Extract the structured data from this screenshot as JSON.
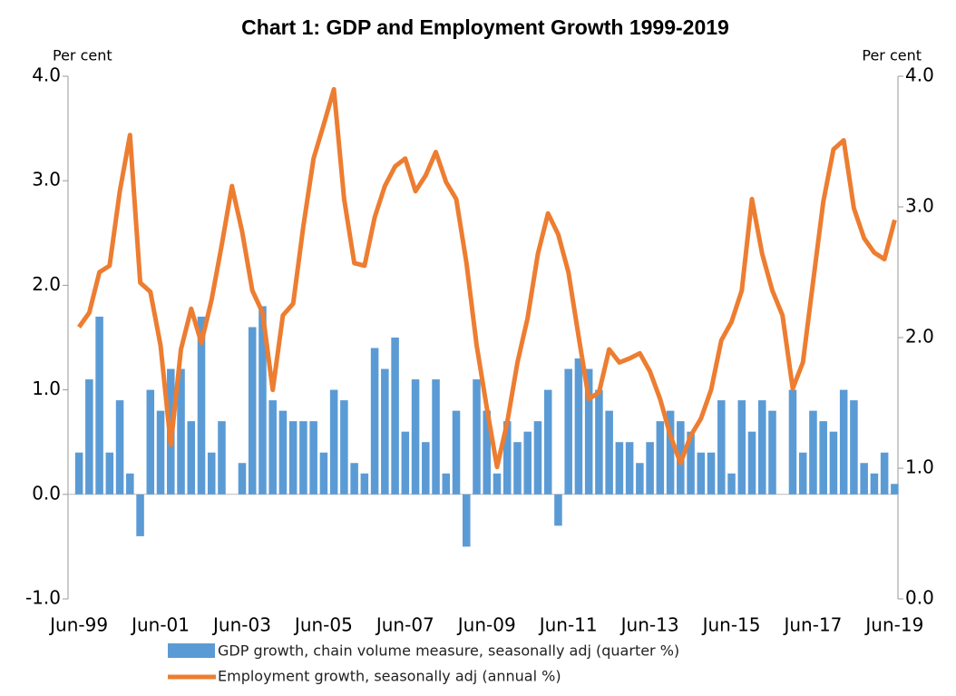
{
  "chart_data": {
    "type": "bar",
    "title": "Chart 1: GDP and Employment Growth 1999-2019",
    "y_label": "Per cent",
    "y2_label": "Per cent",
    "categories": [
      "Jun-99",
      null,
      null,
      null,
      null,
      null,
      null,
      null,
      "Jun-01",
      null,
      null,
      null,
      null,
      null,
      null,
      null,
      "Jun-03",
      null,
      null,
      null,
      null,
      null,
      null,
      null,
      "Jun-05",
      null,
      null,
      null,
      null,
      null,
      null,
      null,
      "Jun-07",
      null,
      null,
      null,
      null,
      null,
      null,
      null,
      "Jun-09",
      null,
      null,
      null,
      null,
      null,
      null,
      null,
      "Jun-11",
      null,
      null,
      null,
      null,
      null,
      null,
      null,
      "Jun-13",
      null,
      null,
      null,
      null,
      null,
      null,
      null,
      "Jun-15",
      null,
      null,
      null,
      null,
      null,
      null,
      null,
      "Jun-17",
      null,
      null,
      null,
      null,
      null,
      null,
      null,
      "Jun-19"
    ],
    "series": [
      {
        "name": "GDP growth, chain volume measure, seasonally adj (quarter %)",
        "type": "bar",
        "color": "#5b9bd5",
        "values": [
          0.4,
          1.1,
          1.7,
          0.4,
          0.9,
          0.2,
          -0.4,
          1.0,
          0.8,
          1.2,
          1.2,
          0.7,
          1.7,
          0.4,
          0.7,
          0.0,
          0.3,
          1.6,
          1.8,
          0.9,
          0.8,
          0.7,
          0.7,
          0.7,
          0.4,
          1.0,
          0.9,
          0.3,
          0.2,
          1.4,
          1.2,
          1.5,
          0.6,
          1.1,
          0.5,
          1.1,
          0.2,
          0.8,
          -0.5,
          1.1,
          0.8,
          0.2,
          0.7,
          0.5,
          0.6,
          0.7,
          1.0,
          -0.3,
          1.2,
          1.3,
          1.2,
          1.0,
          0.8,
          0.5,
          0.5,
          0.3,
          0.5,
          0.7,
          0.8,
          0.7,
          0.6,
          0.4,
          0.4,
          0.9,
          0.2,
          0.9,
          0.6,
          0.9,
          0.8,
          0.0,
          1.0,
          0.4,
          0.8,
          0.7,
          0.6,
          1.0,
          0.9,
          0.3,
          0.2,
          0.4,
          0.1
        ]
      },
      {
        "name": "Employment growth, seasonally adj (annual %)",
        "type": "line",
        "axis": "y2",
        "color": "#ed7d31",
        "values": [
          2.08,
          2.19,
          2.5,
          2.55,
          3.12,
          3.55,
          2.42,
          2.35,
          1.94,
          1.18,
          1.91,
          2.22,
          1.96,
          2.29,
          2.71,
          3.16,
          2.81,
          2.36,
          2.19,
          1.6,
          2.17,
          2.26,
          2.85,
          3.37,
          3.63,
          3.9,
          3.06,
          2.57,
          2.55,
          2.92,
          3.16,
          3.31,
          3.37,
          3.12,
          3.24,
          3.42,
          3.19,
          3.06,
          2.57,
          1.94,
          1.46,
          1.01,
          1.35,
          1.81,
          2.15,
          2.64,
          2.95,
          2.79,
          2.5,
          2.01,
          1.53,
          1.58,
          1.91,
          1.81,
          1.84,
          1.88,
          1.74,
          1.53,
          1.25,
          1.04,
          1.25,
          1.38,
          1.6,
          1.98,
          2.12,
          2.36,
          3.06,
          2.64,
          2.36,
          2.17,
          1.61,
          1.81,
          2.43,
          3.04,
          3.44,
          3.51,
          2.99,
          2.76,
          2.65,
          2.6,
          2.9
        ]
      }
    ],
    "ylim": [
      -1,
      4
    ],
    "yticks": [
      {
        "value": -1,
        "label": "-1.0"
      },
      {
        "value": 0,
        "label": "0.0"
      },
      {
        "value": 1,
        "label": "1.0"
      },
      {
        "value": 2,
        "label": "2.0"
      },
      {
        "value": 3,
        "label": "3.0"
      },
      {
        "value": 4,
        "label": "4.0"
      }
    ],
    "y2lim": [
      0,
      4
    ],
    "y2ticks": [
      {
        "value": 0,
        "label": "0.0"
      },
      {
        "value": 1,
        "label": "1.0"
      },
      {
        "value": 2,
        "label": "2.0"
      },
      {
        "value": 3,
        "label": "3.0"
      },
      {
        "value": 4,
        "label": "4.0"
      }
    ]
  }
}
